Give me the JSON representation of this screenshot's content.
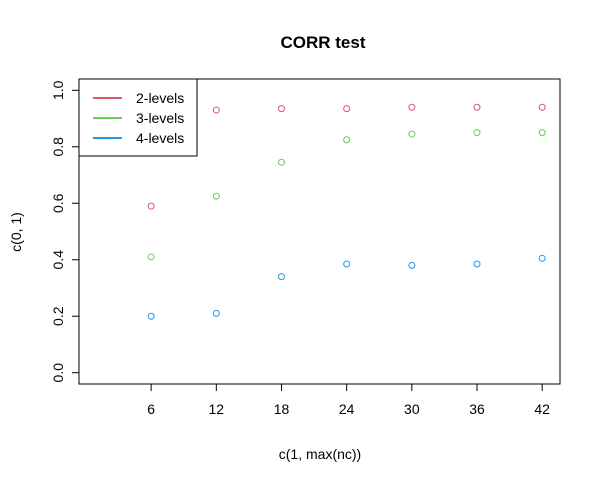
{
  "chart_data": {
    "type": "scatter",
    "title": "CORR test",
    "xlabel": "c(1, max(nc))",
    "ylabel": "c(0, 1)",
    "x": [
      6,
      12,
      18,
      24,
      30,
      36,
      42
    ],
    "xlim": [
      1,
      42
    ],
    "ylim": [
      0,
      1
    ],
    "xticks": [
      6,
      12,
      18,
      24,
      30,
      36,
      42
    ],
    "yticks": [
      0.0,
      0.2,
      0.4,
      0.6,
      0.8,
      1.0
    ],
    "ytick_labels": [
      "0.0",
      "0.2",
      "0.4",
      "0.6",
      "0.8",
      "1.0"
    ],
    "marker": "open-circle",
    "legend_position": "top-left",
    "series": [
      {
        "name": "2-levels",
        "color": "#DF536B",
        "values": [
          0.59,
          0.93,
          0.935,
          0.935,
          0.94,
          0.94,
          0.94
        ]
      },
      {
        "name": "3-levels",
        "color": "#61D04F",
        "values": [
          0.41,
          0.625,
          0.745,
          0.825,
          0.845,
          0.85,
          0.85
        ]
      },
      {
        "name": "4-levels",
        "color": "#2297E6",
        "values": [
          0.2,
          0.21,
          0.34,
          0.385,
          0.38,
          0.385,
          0.405
        ]
      }
    ]
  }
}
